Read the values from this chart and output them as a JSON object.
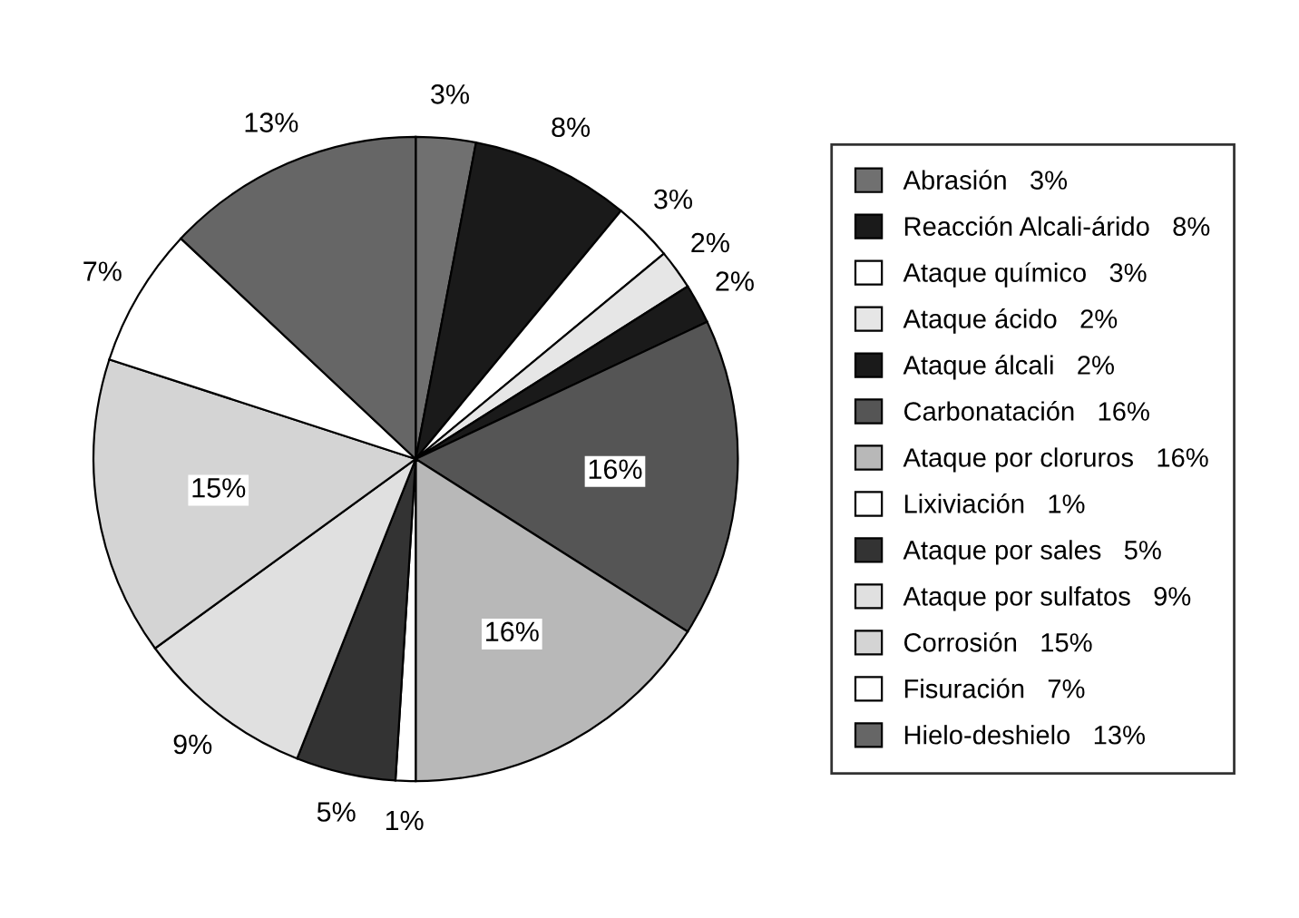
{
  "chart_data": {
    "type": "pie",
    "categories": [
      "Abrasión   3%",
      "Reacción Alcali-árido   8%",
      "Ataque químico   3%",
      "Ataque ácido   2%",
      "Ataque álcali   2%",
      "Carbonatación   16%",
      "Ataque por cloruros   16%",
      "Lixiviación   1%",
      "Ataque por sales   5%",
      "Ataque por sulfatos   9%",
      "Corrosión   15%",
      "Fisuración   7%",
      "Hielo-deshielo   13%"
    ],
    "values": [
      3,
      8,
      3,
      2,
      2,
      16,
      16,
      1,
      5,
      9,
      15,
      7,
      13
    ],
    "value_labels": [
      "3%",
      "8%",
      "3%",
      "2%",
      "2%",
      "16%",
      "16%",
      "1%",
      "5%",
      "9%",
      "15%",
      "7%",
      "13%"
    ],
    "colors": [
      "#707070",
      "#1a1a1a",
      "#ffffff",
      "#e6e6e6",
      "#1a1a1a",
      "#555555",
      "#b8b8b8",
      "#ffffff",
      "#333333",
      "#e0e0e0",
      "#d4d4d4",
      "#ffffff",
      "#666666"
    ],
    "legend": "right"
  }
}
